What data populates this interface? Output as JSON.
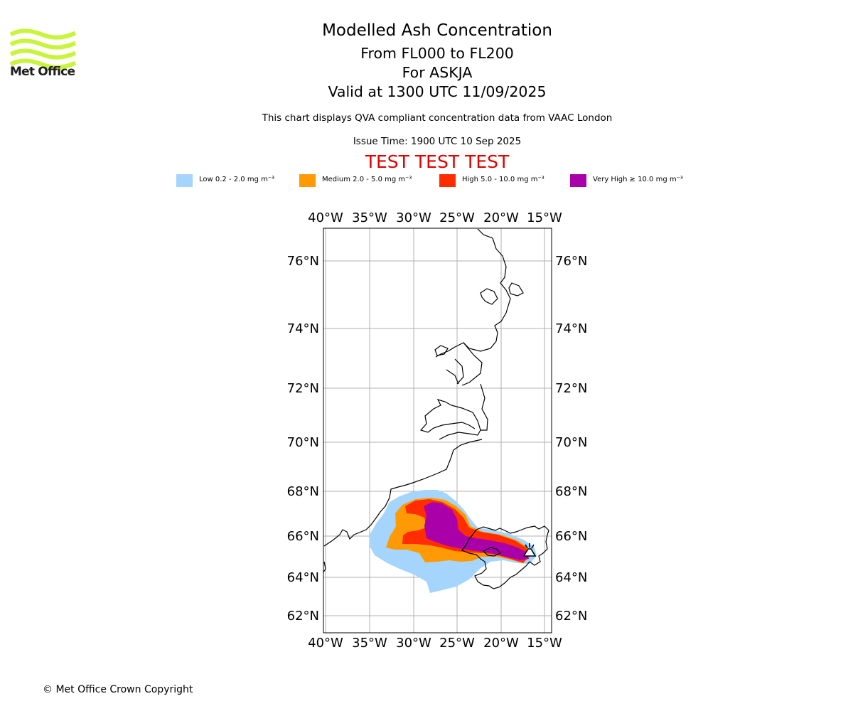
{
  "logo": {
    "text": "Met Office",
    "color": "#c8f53c"
  },
  "header": {
    "title": "Modelled Ash Concentration",
    "levels": "From FL000 to FL200",
    "volcano": "For ASKJA",
    "valid": "Valid at 1300 UTC 11/09/2025",
    "note": "This chart displays QVA compliant concentration data from VAAC London",
    "issue": "Issue Time: 1900 UTC 10 Sep 2025",
    "test_banner": "TEST TEST TEST"
  },
  "legend": [
    {
      "label": "Low 0.2 - 2.0 mg m⁻³",
      "color": "#a5d5fc"
    },
    {
      "label": "Medium 2.0 - 5.0 mg m⁻³",
      "color": "#ff9a05"
    },
    {
      "label": "High 5.0 - 10.0 mg m⁻³",
      "color": "#ff2d00"
    },
    {
      "label": "Very High  ≥  10.0 mg m⁻³",
      "color": "#aa00aa"
    }
  ],
  "map": {
    "lon_labels": [
      "40°W",
      "35°W",
      "30°W",
      "25°W",
      "20°W",
      "15°W"
    ],
    "lat_labels": [
      "76°N",
      "74°N",
      "72°N",
      "70°N",
      "68°N",
      "66°N",
      "64°N",
      "62°N"
    ],
    "volcano_marker": "volcano-symbol"
  },
  "footer": {
    "copyright": "© Met Office Crown Copyright"
  }
}
